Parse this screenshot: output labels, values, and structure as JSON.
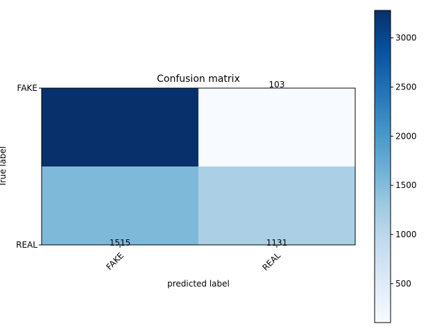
{
  "chart_data": {
    "type": "heatmap",
    "title": "Confusion matrix",
    "xlabel": "predicted label",
    "ylabel": "True label",
    "x_categories": [
      "FAKE",
      "REAL"
    ],
    "y_categories": [
      "FAKE",
      "REAL"
    ],
    "values": [
      [
        3280,
        103
      ],
      [
        1515,
        1131
      ]
    ],
    "cell_labels": [
      [
        "",
        "103"
      ],
      [
        "1515",
        "1131"
      ]
    ],
    "colorbar": {
      "ticks": [
        500,
        1000,
        1500,
        2000,
        2500,
        3000
      ],
      "range": [
        103,
        3280
      ],
      "colormap": "Blues"
    },
    "colors": {
      "c_3280": "#08306b",
      "c_103": "#f7fbff",
      "c_1515": "#7fb9da",
      "c_1131": "#abd0e6"
    },
    "colormap_stops": [
      "#f7fbff",
      "#deebf7",
      "#c6dbef",
      "#9ecae1",
      "#6baed6",
      "#4292c6",
      "#2171b5",
      "#08519c",
      "#08306b"
    ]
  }
}
